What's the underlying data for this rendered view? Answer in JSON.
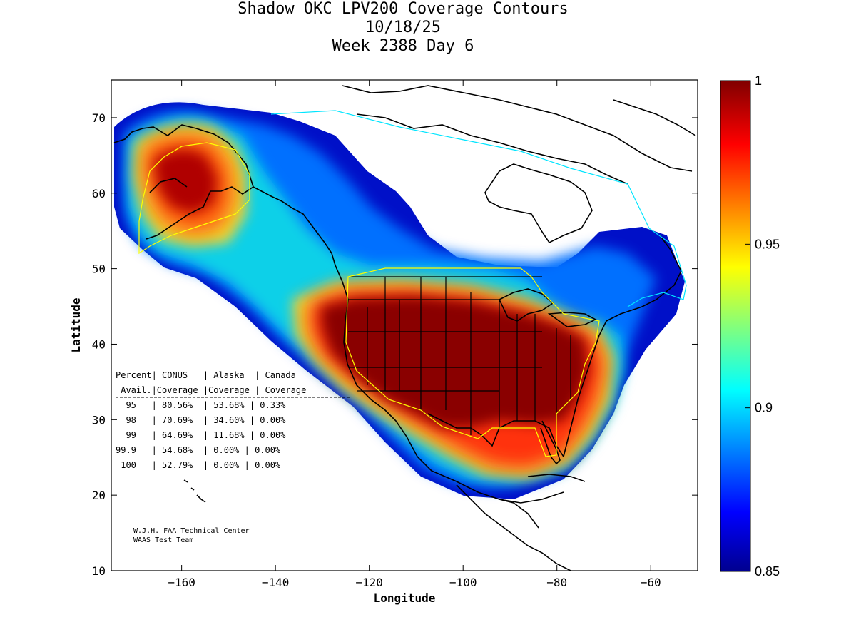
{
  "title": {
    "line1": "Shadow OKC LPV200 Coverage Contours",
    "line2": "10/18/25",
    "line3": "Week 2388 Day 6"
  },
  "axes": {
    "xlabel": "Longitude",
    "ylabel": "Latitude",
    "xlim": [
      -175,
      -50
    ],
    "ylim": [
      10,
      75
    ],
    "xticks": [
      -160,
      -140,
      -120,
      -100,
      -80,
      -60
    ],
    "yticks": [
      10,
      20,
      30,
      40,
      50,
      60,
      70
    ]
  },
  "colorbar": {
    "min": 0.85,
    "max": 1,
    "ticks": [
      "0.85",
      "0.9",
      "0.95",
      "1"
    ]
  },
  "stats_table": {
    "header1": "Percent| CONUS   | Alaska  | Canada",
    "header2": " Avail.|Coverage |Coverage | Coverage",
    "rows": [
      "  95   | 80.56%  | 53.68% | 0.33%",
      "  98   | 70.69%  | 34.60% | 0.00%",
      "  99   | 64.69%  | 11.68% | 0.00%",
      "99.9   | 54.68%  | 0.00% | 0.00%",
      " 100   | 52.79%  | 0.00% | 0.00%"
    ]
  },
  "credit": {
    "line1": "W.J.H. FAA Technical Center",
    "line2": "WAAS Test Team"
  },
  "colors": {
    "service_area": "#ffff00",
    "canada_boundary": "#00e5ff",
    "coastline": "#000000"
  }
}
